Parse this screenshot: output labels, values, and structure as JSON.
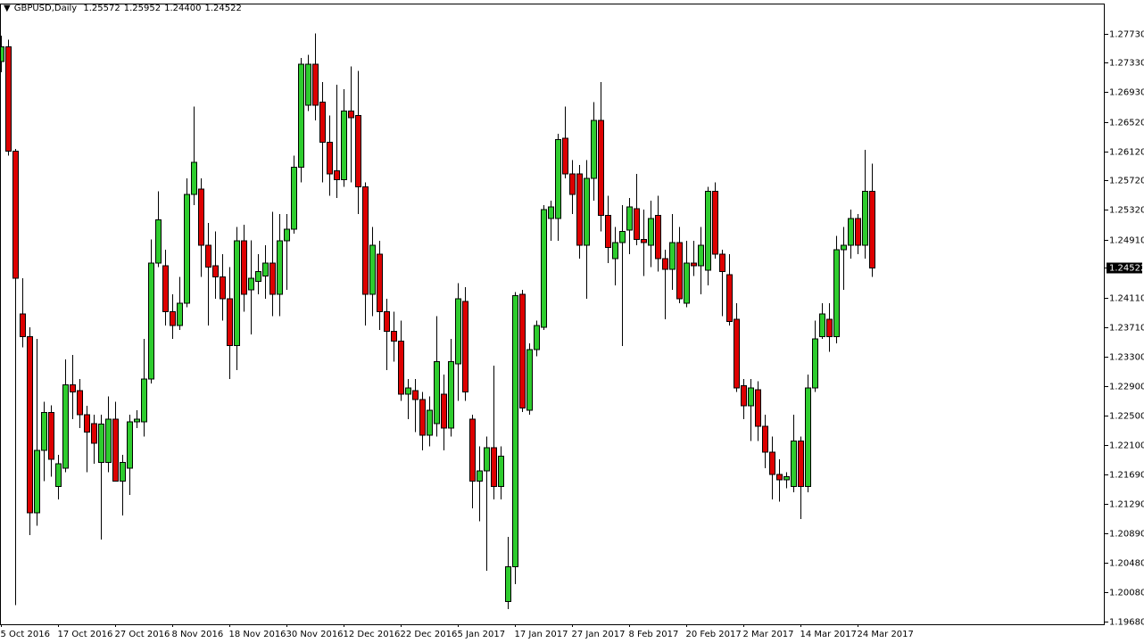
{
  "chart_data": {
    "type": "candlestick",
    "title": "GBPUSD,Daily",
    "header_values": [
      1.25572,
      1.25952,
      {
        "value": 1.244,
        "label": "1.24400"
      },
      1.24522
    ],
    "current_price": 1.24522,
    "up_color": "#2ecc2e",
    "down_color": "#dd0000",
    "ylim": [
      1.1964,
      1.2813
    ],
    "yticks": [
      {
        "value": 1.2773,
        "label": "1.27730"
      },
      {
        "value": 1.2733,
        "label": "1.27330"
      },
      {
        "value": 1.2693,
        "label": "1.26930"
      },
      {
        "value": 1.2652,
        "label": "1.26520"
      },
      {
        "value": 1.2612,
        "label": "1.26120"
      },
      {
        "value": 1.2572,
        "label": "1.25720"
      },
      {
        "value": 1.2532,
        "label": "1.25320"
      },
      {
        "value": 1.2491,
        "label": "1.24910"
      },
      {
        "value": 1.2411,
        "label": "1.24110"
      },
      {
        "value": 1.2371,
        "label": "1.23710"
      },
      {
        "value": 1.233,
        "label": "1.23300"
      },
      {
        "value": 1.229,
        "label": "1.22900"
      },
      {
        "value": 1.225,
        "label": "1.22500"
      },
      {
        "value": 1.221,
        "label": "1.22100"
      },
      {
        "value": 1.2169,
        "label": "1.21690"
      },
      {
        "value": 1.2129,
        "label": "1.21290"
      },
      {
        "value": 1.2089,
        "label": "1.20890"
      },
      {
        "value": 1.2048,
        "label": "1.20480"
      },
      {
        "value": 1.2008,
        "label": "1.20080"
      },
      {
        "value": 1.1968,
        "label": "1.19680"
      }
    ],
    "categories": [
      "5 Oct 2016",
      null,
      null,
      null,
      null,
      null,
      null,
      null,
      "17 Oct 2016",
      null,
      null,
      null,
      null,
      null,
      null,
      null,
      "27 Oct 2016",
      null,
      null,
      null,
      null,
      null,
      null,
      null,
      "8 Nov 2016",
      null,
      null,
      null,
      null,
      null,
      null,
      null,
      "18 Nov 2016",
      null,
      null,
      null,
      null,
      null,
      null,
      null,
      "30 Nov 2016",
      null,
      null,
      null,
      null,
      null,
      null,
      null,
      "12 Dec 2016",
      null,
      null,
      null,
      null,
      null,
      null,
      null,
      "22 Dec 2016",
      null,
      null,
      null,
      null,
      null,
      null,
      null,
      "5 Jan 2017",
      null,
      null,
      null,
      null,
      null,
      null,
      null,
      "17 Jan 2017",
      null,
      null,
      null,
      null,
      null,
      null,
      null,
      "27 Jan 2017",
      null,
      null,
      null,
      null,
      null,
      null,
      null,
      "8 Feb 2017",
      null,
      null,
      null,
      null,
      null,
      null,
      null,
      "20 Feb 2017",
      null,
      null,
      null,
      null,
      null,
      null,
      null,
      "2 Mar 2017",
      null,
      null,
      null,
      null,
      null,
      null,
      null,
      "14 Mar 2017",
      null,
      null,
      null,
      null,
      null,
      null,
      null,
      "24 Mar 2017",
      null,
      null
    ],
    "open": [
      1.2735,
      1.2755,
      1.2612,
      1.2389,
      1.2358,
      1.2117,
      1.2202,
      1.2254,
      1.2153,
      1.2178,
      1.2292,
      1.2284,
      1.2251,
      1.2239,
      1.2186,
      1.2186,
      1.2245,
      1.216,
      1.2178,
      1.2241,
      1.2241,
      1.23,
      1.2459,
      1.2455,
      1.2392,
      1.2373,
      1.2404,
      1.2553,
      1.256,
      1.2483,
      1.2455,
      1.244,
      1.241,
      1.2346,
      1.2489,
      1.2422,
      1.2434,
      1.2441,
      1.2459,
      1.2416,
      1.2489,
      1.2505,
      1.259,
      1.2675,
      1.2731,
      1.2679,
      1.2624,
      1.2585,
      1.2573,
      1.2667,
      1.2661,
      1.2563,
      1.2416,
      1.2471,
      1.2392,
      1.2365,
      1.2352,
      1.2279,
      1.2284,
      1.2272,
      1.2223,
      1.2239,
      1.2279,
      1.2233,
      1.2321,
      1.2406,
      1.2245,
      1.216,
      1.2174,
      1.2206,
      1.2153,
      1.1995,
      1.2043,
      1.2416,
      1.2257,
      1.234,
      1.2371,
      1.252,
      1.252,
      1.263,
      1.2581,
      1.2581,
      1.2483,
      1.2575,
      1.2654,
      1.2524,
      1.2465,
      1.2487,
      1.2504,
      1.2533,
      1.2491,
      1.2483,
      1.2524,
      1.2465,
      1.245,
      1.2487,
      1.2404,
      1.2459,
      1.2455,
      1.2449,
      1.2557,
      1.2471,
      1.2443,
      1.2382,
      1.2291,
      1.2263,
      1.2285,
      1.2235,
      1.22,
      1.2169,
      1.2162,
      1.2153,
      1.2215,
      1.2153,
      1.2288,
      1.2358,
      1.2382,
      1.2358,
      1.2477,
      1.2483,
      1.252,
      1.2483,
      1.25572
    ],
    "high": [
      1.277,
      1.2765,
      1.2615,
      1.2438,
      1.2371,
      1.2355,
      1.2269,
      1.2264,
      1.2196,
      1.2327,
      1.2333,
      1.23,
      1.2263,
      1.2251,
      1.2251,
      1.2276,
      1.2269,
      1.2196,
      1.2251,
      1.2257,
      1.2355,
      1.2491,
      1.2557,
      1.2477,
      1.2416,
      1.244,
      1.2575,
      1.2673,
      1.2575,
      1.2514,
      1.2502,
      1.2471,
      1.2453,
      1.2508,
      1.2511,
      1.249,
      1.2471,
      1.2483,
      1.2529,
      1.2526,
      1.2526,
      1.2606,
      1.274,
      1.2744,
      1.2773,
      1.2707,
      1.2661,
      1.2703,
      1.2697,
      1.2728,
      1.2722,
      1.2569,
      1.2508,
      1.2489,
      1.241,
      1.2392,
      1.238,
      1.23,
      1.23,
      1.2282,
      1.2276,
      1.2386,
      1.2306,
      1.2355,
      1.2431,
      1.2426,
      1.2251,
      1.2208,
      1.2221,
      1.2318,
      1.2208,
      1.2084,
      1.2419,
      1.2422,
      1.2349,
      1.238,
      1.2538,
      1.2544,
      1.2636,
      1.2673,
      1.26,
      1.2593,
      1.26,
      1.2679,
      1.2707,
      1.2551,
      1.2508,
      1.2538,
      1.2548,
      1.2581,
      1.2532,
      1.2544,
      1.2551,
      1.2477,
      1.2526,
      1.2508,
      1.2489,
      1.2489,
      1.2508,
      1.2563,
      1.2569,
      1.2477,
      1.2471,
      1.2404,
      1.23,
      1.23,
      1.2297,
      1.2251,
      1.2221,
      1.219,
      1.2172,
      1.2251,
      1.2221,
      1.2306,
      1.238,
      1.2404,
      1.2404,
      1.2496,
      1.2508,
      1.2532,
      1.2526,
      1.2614,
      1.25952
    ],
    "low": [
      1.272,
      1.2606,
      1.199,
      1.2343,
      1.2086,
      1.2099,
      1.216,
      1.2166,
      1.2135,
      1.2172,
      1.2245,
      1.2233,
      1.2172,
      1.2184,
      1.208,
      1.2172,
      1.216,
      1.2113,
      1.2141,
      1.2233,
      1.2221,
      1.2294,
      1.2453,
      1.2373,
      1.2355,
      1.2367,
      1.2398,
      1.2538,
      1.244,
      1.2373,
      1.241,
      1.238,
      1.23,
      1.2312,
      1.2392,
      1.2361,
      1.2416,
      1.241,
      1.2386,
      1.2386,
      1.2422,
      1.2499,
      1.2569,
      1.2667,
      1.2654,
      1.2569,
      1.2551,
      1.2548,
      1.2563,
      1.2569,
      1.2526,
      1.2373,
      1.2386,
      1.2367,
      1.2312,
      1.2324,
      1.227,
      1.2245,
      1.2227,
      1.2202,
      1.2208,
      1.2221,
      1.2202,
      1.2221,
      1.227,
      1.227,
      1.2123,
      1.2105,
      1.2037,
      1.2135,
      1.2135,
      1.1985,
      1.2019,
      1.2255,
      1.2251,
      1.2331,
      1.2367,
      1.2489,
      1.2489,
      1.2575,
      1.2526,
      1.2465,
      1.241,
      1.2544,
      1.2502,
      1.2459,
      1.2428,
      1.2345,
      1.2471,
      1.2483,
      1.2441,
      1.2453,
      1.2447,
      1.2382,
      1.2422,
      1.2404,
      1.2398,
      1.2441,
      1.2416,
      1.2428,
      1.2465,
      1.2386,
      1.2373,
      1.2282,
      1.2245,
      1.2215,
      1.2215,
      1.2178,
      1.2135,
      1.2132,
      1.215,
      1.2145,
      1.2108,
      1.2145,
      1.2282,
      1.2355,
      1.2337,
      1.2349,
      1.2422,
      1.2465,
      1.2471,
      1.2465,
      1.244
    ],
    "close": [
      1.2755,
      1.2612,
      1.2438,
      1.2358,
      1.2117,
      1.2202,
      1.2254,
      1.219,
      1.2184,
      1.2292,
      1.2282,
      1.2251,
      1.2227,
      1.2212,
      1.2238,
      1.2245,
      1.216,
      1.2186,
      1.2241,
      1.2245,
      1.23,
      1.2459,
      1.2518,
      1.2392,
      1.2373,
      1.2404,
      1.2553,
      1.2597,
      1.2483,
      1.2453,
      1.244,
      1.241,
      1.2346,
      1.2489,
      1.2416,
      1.2438,
      1.2447,
      1.2459,
      1.2416,
      1.2489,
      1.2505,
      1.259,
      1.2731,
      1.2731,
      1.2675,
      1.2624,
      1.2581,
      1.2573,
      1.2667,
      1.2658,
      1.2563,
      1.2416,
      1.2483,
      1.2392,
      1.2365,
      1.2352,
      1.2279,
      1.2288,
      1.2272,
      1.2223,
      1.2257,
      1.2324,
      1.2233,
      1.2324,
      1.241,
      1.2282,
      1.216,
      1.2174,
      1.2206,
      1.2153,
      1.2194,
      1.2043,
      1.2414,
      1.226,
      1.234,
      1.2373,
      1.2532,
      1.2536,
      1.2628,
      1.2581,
      1.2553,
      1.2483,
      1.2575,
      1.2654,
      1.2524,
      1.248,
      1.2487,
      1.2502,
      1.2536,
      1.2491,
      1.2487,
      1.252,
      1.2465,
      1.245,
      1.2487,
      1.241,
      1.2459,
      1.2455,
      1.2483,
      1.2557,
      1.2471,
      1.2447,
      1.2379,
      1.2288,
      1.2263,
      1.2288,
      1.2235,
      1.22,
      1.2169,
      1.2162,
      1.2166,
      1.2215,
      1.2153,
      1.2288,
      1.2355,
      1.2389,
      1.2358,
      1.2477,
      1.2483,
      1.252,
      1.2483,
      1.2557,
      1.24522
    ]
  }
}
